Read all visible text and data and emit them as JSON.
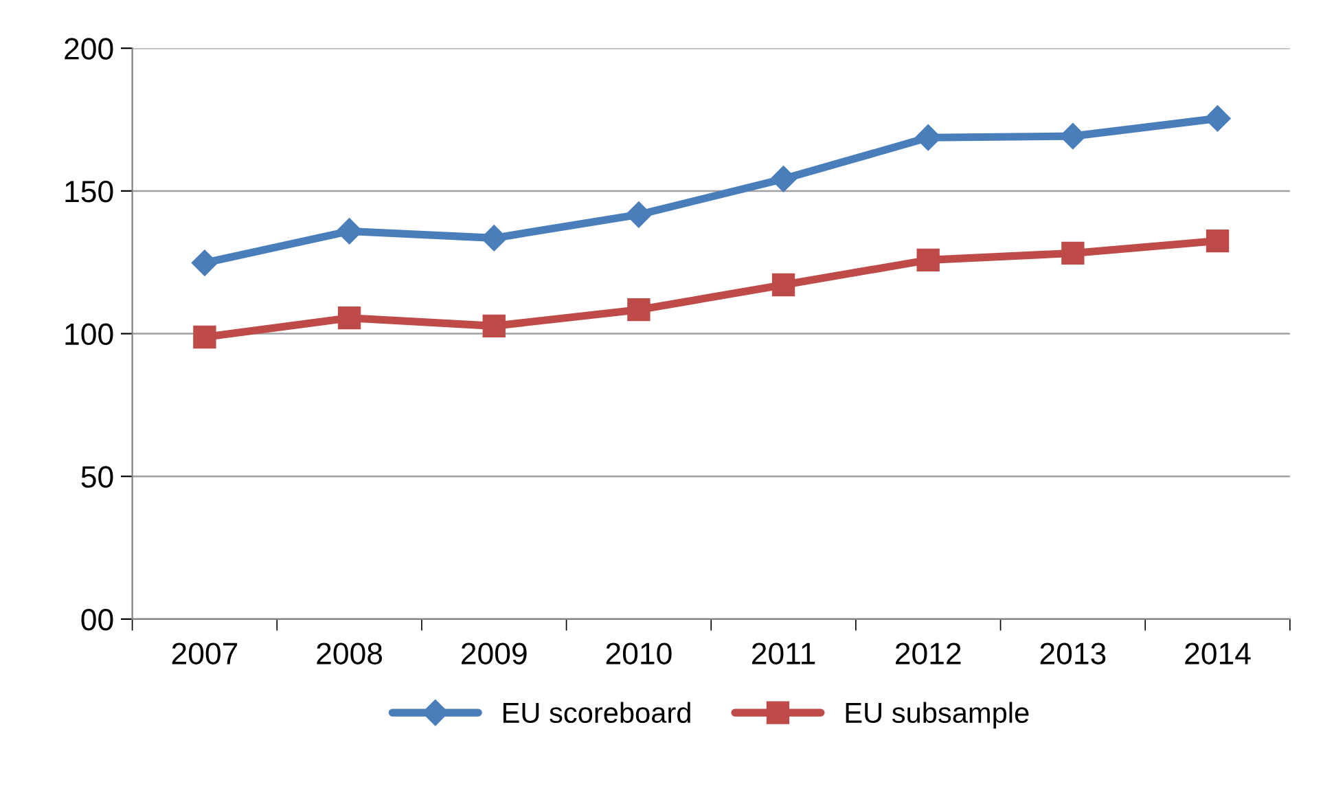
{
  "chart_data": {
    "type": "line",
    "categories": [
      "2007",
      "2008",
      "2009",
      "2010",
      "2011",
      "2012",
      "2013",
      "2014"
    ],
    "series": [
      {
        "name": "EU scoreboard",
        "color": "#4a7ebb",
        "marker": "diamond",
        "values": [
          124.8,
          135.9,
          133.5,
          141.7,
          154.2,
          168.7,
          169.2,
          175.4
        ]
      },
      {
        "name": "EU subsample",
        "color": "#be4b48",
        "marker": "square",
        "values": [
          98.8,
          105.5,
          102.7,
          108.4,
          117.1,
          125.8,
          128.2,
          132.5
        ]
      }
    ],
    "ylim": [
      0,
      200
    ],
    "yticks": [
      {
        "value": 0,
        "label": "00"
      },
      50,
      100,
      150,
      200
    ],
    "grid": "y",
    "legend": "bottom",
    "line_style": "solid"
  }
}
